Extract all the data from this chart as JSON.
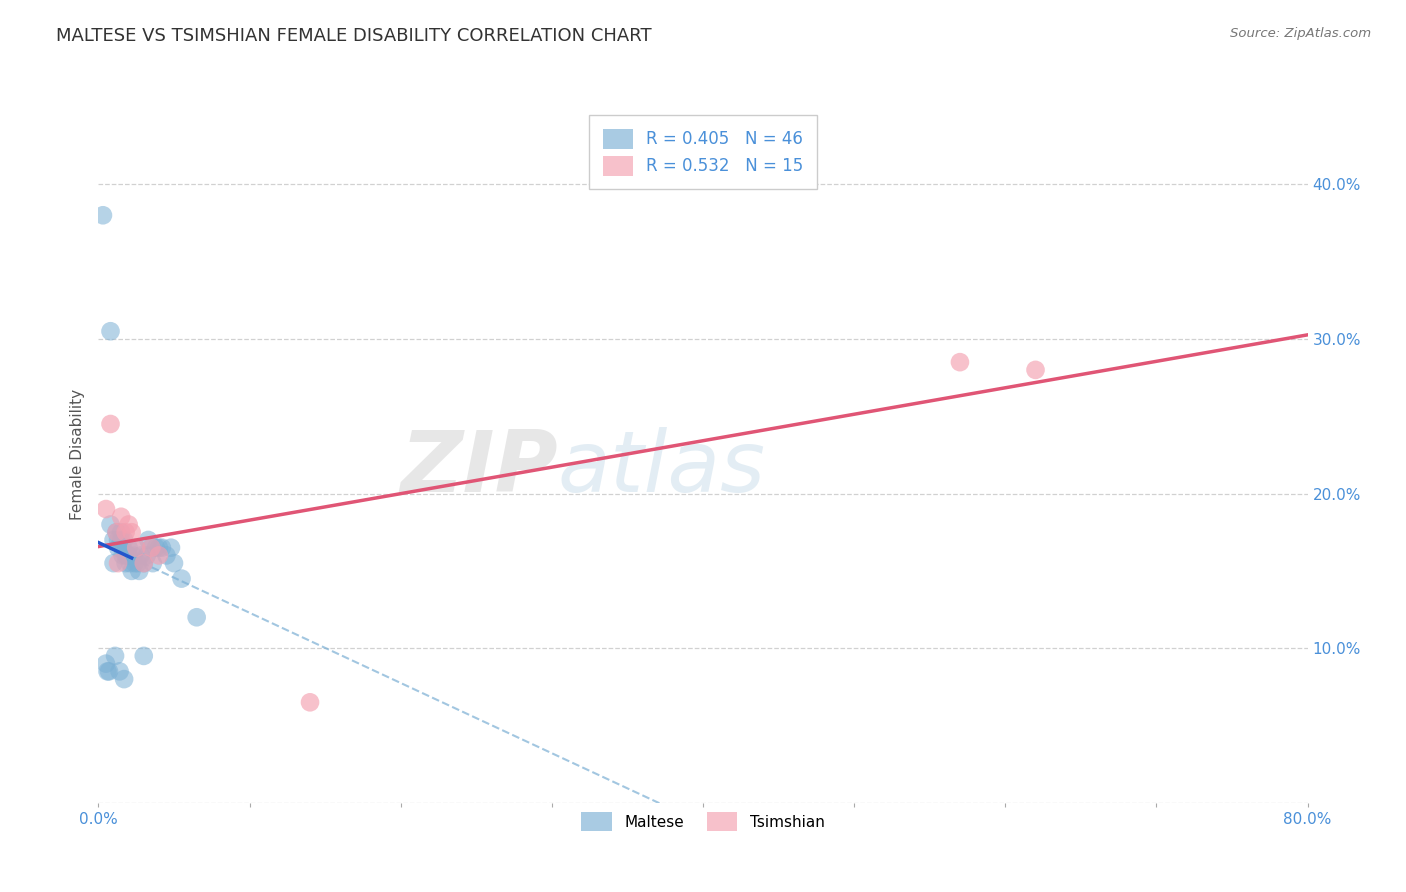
{
  "title": "MALTESE VS TSIMSHIAN FEMALE DISABILITY CORRELATION CHART",
  "source": "Source: ZipAtlas.com",
  "ylabel": "Female Disability",
  "xlim": [
    0.0,
    0.8
  ],
  "ylim": [
    0.0,
    0.45
  ],
  "yticks": [
    0.0,
    0.1,
    0.2,
    0.3,
    0.4
  ],
  "ytick_labels_right": [
    "",
    "10.0%",
    "20.0%",
    "30.0%",
    "40.0%"
  ],
  "xticks": [
    0.0,
    0.1,
    0.2,
    0.3,
    0.4,
    0.5,
    0.6,
    0.7,
    0.8
  ],
  "xtick_labels": [
    "0.0%",
    "",
    "",
    "",
    "",
    "",
    "",
    "",
    "80.0%"
  ],
  "tick_color": "#4a90d9",
  "grid_color": "#cccccc",
  "maltese_color": "#7bafd4",
  "tsimshian_color": "#f4a0b0",
  "maltese_line_solid_color": "#2255cc",
  "maltese_line_dash_color": "#7bafd4",
  "tsimshian_line_color": "#e05575",
  "maltese_R": 0.405,
  "maltese_N": 46,
  "tsimshian_R": 0.532,
  "tsimshian_N": 15,
  "maltese_x": [
    0.003,
    0.005,
    0.006,
    0.007,
    0.008,
    0.008,
    0.01,
    0.01,
    0.011,
    0.012,
    0.013,
    0.013,
    0.014,
    0.015,
    0.015,
    0.016,
    0.016,
    0.017,
    0.017,
    0.018,
    0.018,
    0.019,
    0.02,
    0.02,
    0.021,
    0.022,
    0.023,
    0.024,
    0.025,
    0.026,
    0.027,
    0.028,
    0.03,
    0.03,
    0.032,
    0.033,
    0.035,
    0.036,
    0.038,
    0.04,
    0.042,
    0.045,
    0.048,
    0.05,
    0.055,
    0.065
  ],
  "maltese_y": [
    0.38,
    0.09,
    0.085,
    0.085,
    0.305,
    0.18,
    0.17,
    0.155,
    0.095,
    0.175,
    0.165,
    0.17,
    0.085,
    0.17,
    0.175,
    0.165,
    0.16,
    0.17,
    0.08,
    0.16,
    0.155,
    0.16,
    0.16,
    0.165,
    0.155,
    0.15,
    0.16,
    0.155,
    0.165,
    0.155,
    0.15,
    0.16,
    0.155,
    0.095,
    0.16,
    0.17,
    0.165,
    0.155,
    0.165,
    0.165,
    0.165,
    0.16,
    0.165,
    0.155,
    0.145,
    0.12
  ],
  "tsimshian_x": [
    0.005,
    0.008,
    0.012,
    0.013,
    0.015,
    0.018,
    0.02,
    0.022,
    0.025,
    0.03,
    0.035,
    0.04,
    0.14,
    0.57,
    0.62
  ],
  "tsimshian_y": [
    0.19,
    0.245,
    0.175,
    0.155,
    0.185,
    0.175,
    0.18,
    0.175,
    0.165,
    0.155,
    0.165,
    0.16,
    0.065,
    0.285,
    0.28
  ]
}
